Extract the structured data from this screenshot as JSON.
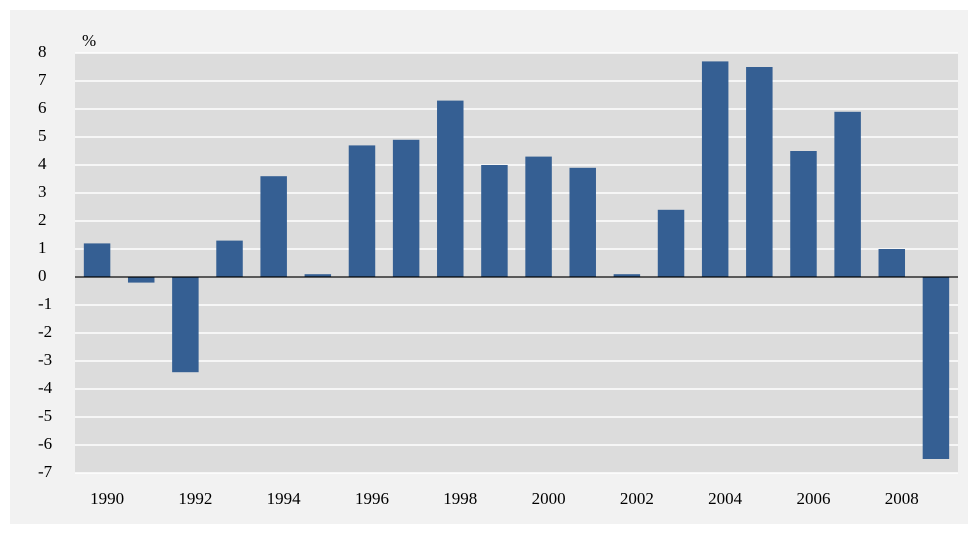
{
  "chart_data": {
    "type": "bar",
    "unit_label": "%",
    "categories": [
      "1990",
      null,
      "1992",
      null,
      "1994",
      null,
      "1996",
      null,
      "1998",
      null,
      "2000",
      null,
      "2002",
      null,
      "2004",
      null,
      "2006",
      null,
      "2008",
      null
    ],
    "values": [
      1.2,
      -0.2,
      -3.4,
      1.3,
      3.6,
      0.1,
      4.7,
      4.9,
      6.3,
      4.0,
      4.3,
      3.9,
      0.1,
      2.4,
      7.7,
      7.5,
      4.5,
      5.9,
      1.0,
      -6.5
    ],
    "color": "#355f93",
    "ylim": [
      -7,
      8
    ],
    "yticks": [
      -7,
      -6,
      -5,
      -4,
      -3,
      -2,
      -1,
      0,
      1,
      2,
      3,
      4,
      5,
      6,
      7,
      8
    ],
    "grid": true
  }
}
